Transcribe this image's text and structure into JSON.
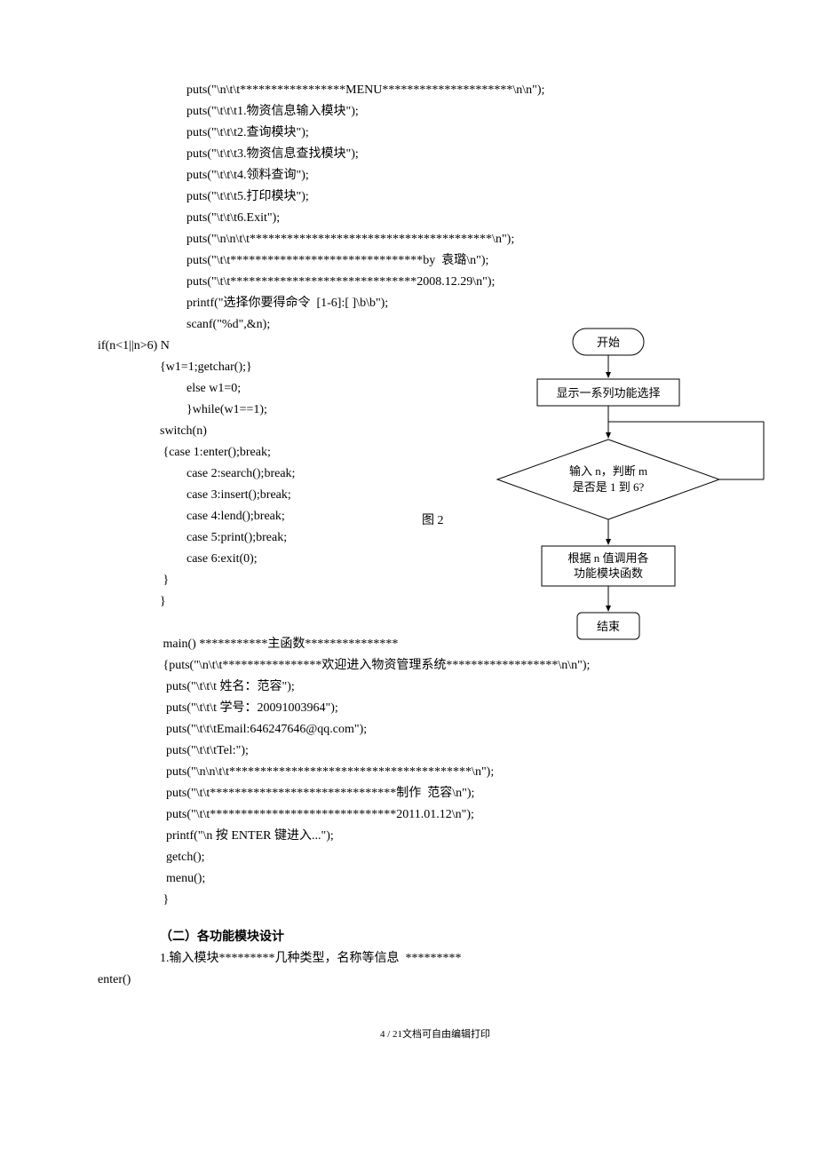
{
  "codeBlock1": [
    {
      "indent": "indent2",
      "text": "puts(\"\\n\\t\\t*****************MENU*********************\\n\\n\");"
    },
    {
      "indent": "indent2",
      "text": "puts(\"\\t\\t\\t1.物资信息输入模块\");"
    },
    {
      "indent": "indent2",
      "text": "puts(\"\\t\\t\\t2.查询模块\");"
    },
    {
      "indent": "indent2",
      "text": "puts(\"\\t\\t\\t3.物资信息查找模块\");"
    },
    {
      "indent": "indent2",
      "text": "puts(\"\\t\\t\\t4.领料查询\");"
    },
    {
      "indent": "indent2",
      "text": "puts(\"\\t\\t\\t5.打印模块\");"
    },
    {
      "indent": "indent2",
      "text": "puts(\"\\t\\t\\t6.Exit\");"
    },
    {
      "indent": "indent2",
      "text": "puts(\"\\n\\n\\t\\t***************************************\\n\");"
    },
    {
      "indent": "indent2",
      "text": "puts(\"\\t\\t*******************************by  袁璐\\n\");"
    },
    {
      "indent": "indent2",
      "text": "puts(\"\\t\\t******************************2008.12.29\\n\");"
    },
    {
      "indent": "indent2",
      "text": "printf(\"选择你要得命令  [1-6]:[ ]\\b\\b\");"
    },
    {
      "indent": "indent2",
      "text": "scanf(\"%d\",&n);"
    },
    {
      "indent": "indentN",
      "text": "if(n<1||n>6) N"
    },
    {
      "indent": "indent1",
      "text": "{w1=1;getchar();}"
    },
    {
      "indent": "indent2",
      "text": "else w1=0;"
    },
    {
      "indent": "indent2",
      "text": "}while(w1==1);"
    },
    {
      "indent": "indent1",
      "text": "switch(n)"
    },
    {
      "indent": "indent1",
      "text": " {case 1:enter();break;"
    },
    {
      "indent": "indent2",
      "text": "case 2:search();break;"
    },
    {
      "indent": "indent2",
      "text": "case 3:insert();break;"
    },
    {
      "indent": "indent2",
      "text": "case 4:lend();break;"
    },
    {
      "indent": "indent2",
      "text": "case 5:print();break;"
    },
    {
      "indent": "indent2",
      "text": "case 6:exit(0);"
    },
    {
      "indent": "indent1",
      "text": " }"
    },
    {
      "indent": "indent1",
      "text": "}"
    }
  ],
  "codeBlock2": [
    {
      "indent": "indent1",
      "text": " main() ***********主函数***************"
    },
    {
      "indent": "indent1",
      "text": " {puts(\"\\n\\t\\t****************欢迎进入物资管理系统******************\\n\\n\");"
    },
    {
      "indent": "indent1",
      "text": "  puts(\"\\t\\t\\t 姓名：范容\");"
    },
    {
      "indent": "indent1",
      "text": "  puts(\"\\t\\t\\t 学号：20091003964\");"
    },
    {
      "indent": "indent1",
      "text": "  puts(\"\\t\\t\\tEmail:646247646@qq.com\");"
    },
    {
      "indent": "indent1",
      "text": "  puts(\"\\t\\t\\tTel:\");"
    },
    {
      "indent": "indent1",
      "text": "  puts(\"\\n\\n\\t\\t***************************************\\n\");"
    },
    {
      "indent": "indent1",
      "text": "  puts(\"\\t\\t******************************制作  范容\\n\");"
    },
    {
      "indent": "indent1",
      "text": "  puts(\"\\t\\t******************************2011.01.12\\n\");"
    },
    {
      "indent": "indent1",
      "text": "  printf(\"\\n 按 ENTER 键进入...\");"
    },
    {
      "indent": "indent1",
      "text": "  getch();"
    },
    {
      "indent": "indent1",
      "text": "  menu();"
    },
    {
      "indent": "indent1",
      "text": " }"
    }
  ],
  "section2Head": "（二）各功能模块设计",
  "section2Line": "1.输入模块*********几种类型，名称等信息  *********",
  "enterLine": "enter()",
  "figLabel": "图 2",
  "flow": {
    "start": "开始",
    "step1": "显示一系列功能选择",
    "decision1": "输入 n，判断 m",
    "decision2": "是否是 1 到 6?",
    "step2a": "根据 n 值调用各",
    "step2b": "功能模块函数",
    "end": "结束",
    "stroke": "#000000",
    "fill": "#ffffff",
    "fontSize": "13"
  },
  "footer": "4 / 21文档可自由编辑打印"
}
